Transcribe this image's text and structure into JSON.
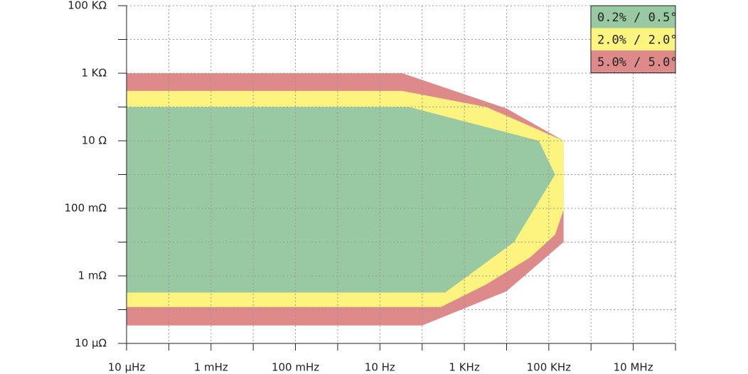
{
  "chart_data": {
    "type": "area-region",
    "xscale": "log",
    "yscale": "log",
    "grid": true,
    "legend": "upper right",
    "xlim": [
      1e-05,
      100000000
    ],
    "ylim": [
      1e-05,
      100000
    ],
    "xticks": [
      {
        "value": 1e-05,
        "label": "10 µHz"
      },
      {
        "value": 0.0001,
        "label": null
      },
      {
        "value": 0.001,
        "label": "1 mHz"
      },
      {
        "value": 0.01,
        "label": null
      },
      {
        "value": 0.1,
        "label": "100 mHz"
      },
      {
        "value": 1,
        "label": null
      },
      {
        "value": 10,
        "label": "10 Hz"
      },
      {
        "value": 100,
        "label": null
      },
      {
        "value": 1000,
        "label": "1 KHz"
      },
      {
        "value": 10000,
        "label": null
      },
      {
        "value": 100000,
        "label": "100 KHz"
      },
      {
        "value": 1000000,
        "label": null
      },
      {
        "value": 10000000,
        "label": "10 MHz"
      },
      {
        "value": 100000000,
        "label": null
      }
    ],
    "yticks": [
      {
        "value": 1e-05,
        "label": "10 µΩ"
      },
      {
        "value": 0.0001,
        "label": null
      },
      {
        "value": 0.001,
        "label": "1 mΩ"
      },
      {
        "value": 0.01,
        "label": null
      },
      {
        "value": 0.1,
        "label": "100 mΩ"
      },
      {
        "value": 1,
        "label": null
      },
      {
        "value": 10,
        "label": "10 Ω"
      },
      {
        "value": 100,
        "label": null
      },
      {
        "value": 1000,
        "label": "1 KΩ"
      },
      {
        "value": 10000,
        "label": null
      },
      {
        "value": 100000,
        "label": "100 KΩ"
      }
    ],
    "series": [
      {
        "name": "5.0% / 5.0°",
        "color": "#de8a8a",
        "x": [
          1e-05,
          34,
          10000,
          224000,
          224000,
          10000,
          100,
          1e-05
        ],
        "values": [
          1000,
          1000,
          90,
          10,
          0.01,
          0.00035,
          3.4e-05,
          3.4e-05
        ]
      },
      {
        "name": "2.0% / 2.0°",
        "color": "#fdf47f",
        "x": [
          1e-05,
          34,
          3300,
          224000,
          224000,
          141000,
          36000,
          3300,
          280,
          1e-05
        ],
        "values": [
          300,
          300,
          100,
          10,
          0.09,
          0.0166,
          0.0035,
          0.00056,
          0.00012,
          0.00012
        ]
      },
      {
        "name": "0.2% / 0.5°",
        "color": "#98c9a3",
        "x": [
          1e-05,
          49,
          58000,
          141000,
          15000,
          350,
          1e-05
        ],
        "values": [
          100,
          100,
          10,
          1,
          0.01,
          0.00032,
          0.00032
        ]
      }
    ]
  }
}
